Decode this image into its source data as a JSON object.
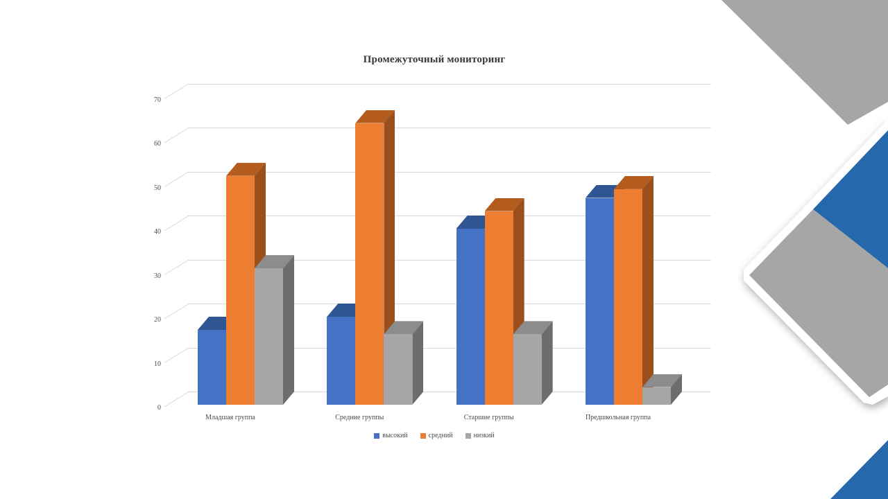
{
  "slide": {
    "background": "#ffffff"
  },
  "chart_data": {
    "type": "bar",
    "style": "3d-clustered-column",
    "title": "Промежуточный мониторинг",
    "categories": [
      "Младшая группа",
      "Средние группы",
      "Старшие группы",
      "Предшкольная группа"
    ],
    "series": [
      {
        "name": "высокий",
        "color": "#4472C4",
        "top_color": "#2F5692",
        "side_color": "#2A4E86",
        "values": [
          17,
          20,
          40,
          47
        ]
      },
      {
        "name": "средний",
        "color": "#ED7D31",
        "top_color": "#B35C1E",
        "side_color": "#9A4F1D",
        "values": [
          52,
          64,
          44,
          49
        ]
      },
      {
        "name": "низкий",
        "color": "#A6A6A6",
        "top_color": "#8C8C8C",
        "side_color": "#6D6D6D",
        "values": [
          31,
          16,
          16,
          4
        ]
      }
    ],
    "xlabel": "",
    "ylabel": "",
    "y_axis": {
      "min": 0,
      "max": 70,
      "step": 10,
      "ticks": [
        0,
        10,
        20,
        30,
        40,
        50,
        60,
        70
      ]
    },
    "grid": true,
    "grid_color": "#d9d9d9",
    "legend_position": "bottom"
  },
  "decor": {
    "top_right_diamond_gray": "#A6A6A6",
    "mid_diamond_blue": "#2668AC",
    "mid_diamond_gray": "#A6A6A6",
    "mid_diamond_border": "#FFFFFF",
    "bottom_corner_blue": "#2668AC"
  }
}
